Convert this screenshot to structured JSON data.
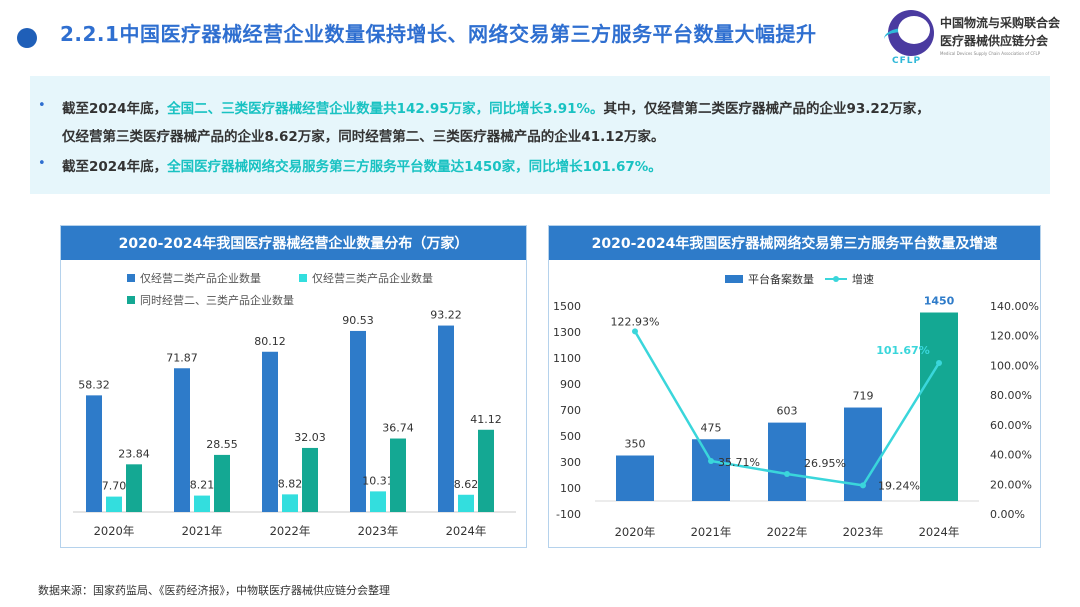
{
  "header": {
    "title": "2.2.1中国医疗器械经营企业数量保持增长、网络交易第三方服务平台数量大幅提升"
  },
  "logo": {
    "abbr": "CFLP",
    "line1": "中国物流与采购联合会",
    "line2": "医疗器械供应链分会",
    "line3": "Medical Devices Supply Chain Association of CFLP"
  },
  "summary": {
    "b1_part1": "截至2024年底，",
    "b1_highlight": "全国二、三类医疗器械经营企业数量共142.95万家，同比增长3.91%。",
    "b1_part2": "其中，仅经营第二类医疗器械产品的企业93.22万家，",
    "b1_line2": "仅经营第三类医疗器械产品的企业8.62万家，同时经营第二、三类医疗器械产品的企业41.12万家。",
    "b2_part1": "截至2024年底，",
    "b2_highlight": "全国医疗器械网络交易服务第三方服务平台数量达1450家，同比增长101.67%。"
  },
  "source": "数据来源：国家药监局、《医药经济报》，中物联医疗器械供应链分会整理",
  "colors": {
    "blue": "#2e7bc9",
    "cyan": "#33dede",
    "teal": "#14a893",
    "line": "#3ad6db"
  },
  "chart_data": [
    {
      "type": "bar",
      "title": "2020-2024年我国医疗器械经营企业数量分布（万家）",
      "categories": [
        "2020年",
        "2021年",
        "2022年",
        "2023年",
        "2024年"
      ],
      "series": [
        {
          "name": "仅经营二类产品企业数量",
          "values": [
            58.32,
            71.87,
            80.12,
            90.53,
            93.22
          ],
          "labels": [
            "58.32",
            "71.87",
            "80.12",
            "90.53",
            "93.22"
          ]
        },
        {
          "name": "仅经营三类产品企业数量",
          "values": [
            7.7,
            8.21,
            8.82,
            10.31,
            8.62
          ],
          "labels": [
            "7.70",
            "8.21",
            "8.82",
            "10.31",
            "8.62"
          ]
        },
        {
          "name": "同时经营二、三类产品企业数量",
          "values": [
            23.84,
            28.55,
            32.03,
            36.74,
            41.12
          ],
          "labels": [
            "23.84",
            "28.55",
            "32.03",
            "36.74",
            "41.12"
          ]
        }
      ],
      "ylim": [
        0,
        100
      ],
      "legend": "top"
    },
    {
      "type": "bar",
      "title": "2020-2024年我国医疗器械网络交易第三方服务平台数量及增速",
      "categories": [
        "2020年",
        "2021年",
        "2022年",
        "2023年",
        "2024年"
      ],
      "series": [
        {
          "name": "平台备案数量",
          "kind": "bar",
          "values": [
            350,
            475,
            603,
            719,
            1450
          ],
          "labels": [
            "350",
            "475",
            "603",
            "719",
            "1450"
          ]
        },
        {
          "name": "增速",
          "kind": "line",
          "axis": "right",
          "values": [
            122.93,
            35.71,
            26.95,
            19.24,
            101.67
          ],
          "labels": [
            "122.93%",
            "35.71%",
            "26.95%",
            "19.24%",
            "101.67%"
          ]
        }
      ],
      "ylim": [
        -100,
        1500
      ],
      "y2lim": [
        0,
        140
      ],
      "yticks": [
        "-100",
        "100",
        "300",
        "500",
        "700",
        "900",
        "1100",
        "1300",
        "1500"
      ],
      "y2ticks": [
        "0.00%",
        "20.00%",
        "40.00%",
        "60.00%",
        "80.00%",
        "100.00%",
        "120.00%",
        "140.00%"
      ],
      "legend": "top"
    }
  ]
}
